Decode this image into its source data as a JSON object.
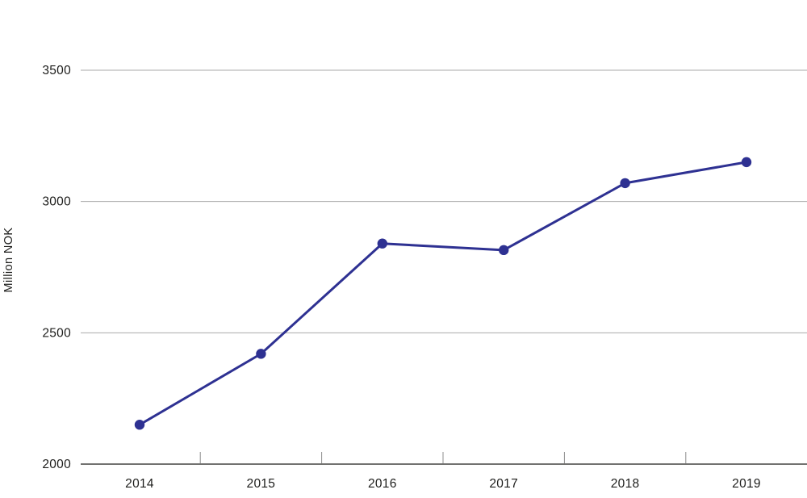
{
  "chart_data": {
    "type": "line",
    "categories": [
      "2014",
      "2015",
      "2016",
      "2017",
      "2018",
      "2019"
    ],
    "values": [
      2150,
      2420,
      2840,
      2815,
      3070,
      3150
    ],
    "title": "",
    "xlabel": "",
    "ylabel": "Million NOK",
    "ylim": [
      2000,
      3500
    ],
    "yticks": [
      2000,
      2500,
      3000,
      3500
    ],
    "grid": true,
    "legend_position": "none",
    "line_color": "#2e3192",
    "axis_color": "#1d1d1b",
    "gridline_color": "#a9a9a9",
    "tick_color": "#8c8c8c",
    "label_color": "#1d1d1b"
  }
}
